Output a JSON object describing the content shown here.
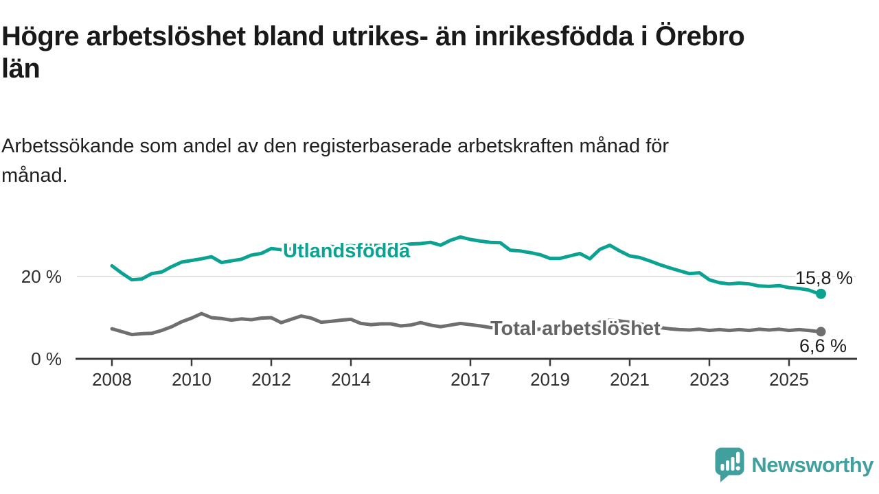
{
  "title": "Högre arbetslöshet bland utrikes- än inrikesfödda i Örebro\nlän",
  "subtitle": "Arbetssökande som andel av den registerbaserade arbetskraften månad för\nmånad.",
  "colors": {
    "utlandsfodda": "#0ba291",
    "total": "#6f6f6f",
    "gridline": "#d9d9d9",
    "axis": "#3a3a3a",
    "value_label": "#1b1b1b",
    "brand_teal": "#3fa09d"
  },
  "chart_data": {
    "type": "line",
    "unit": "%",
    "grid": "single horizontal gridline at 20 %",
    "legend_position": "labels inline on lines",
    "x_axis_range": [
      2007.1,
      2026.7
    ],
    "ylim": [
      0,
      31
    ],
    "y_ticks": [
      {
        "v": 20,
        "label": "20 %"
      },
      {
        "v": 0,
        "label": "0 %"
      }
    ],
    "x_ticks": [
      {
        "t": 2008,
        "label": "2008"
      },
      {
        "t": 2010,
        "label": "2010"
      },
      {
        "t": 2012,
        "label": "2012"
      },
      {
        "t": 2014,
        "label": "2014"
      },
      {
        "t": 2017,
        "label": "2017"
      },
      {
        "t": 2019,
        "label": "2019"
      },
      {
        "t": 2021,
        "label": "2021"
      },
      {
        "t": 2023,
        "label": "2023"
      },
      {
        "t": 2025,
        "label": "2025"
      }
    ],
    "x": [
      2008.0,
      2008.25,
      2008.5,
      2008.75,
      2009.0,
      2009.25,
      2009.5,
      2009.75,
      2010.0,
      2010.25,
      2010.5,
      2010.75,
      2011.0,
      2011.25,
      2011.5,
      2011.75,
      2012.0,
      2012.25,
      2012.5,
      2012.75,
      2013.0,
      2013.25,
      2013.5,
      2013.75,
      2014.0,
      2014.25,
      2014.5,
      2014.75,
      2015.0,
      2015.25,
      2015.5,
      2015.75,
      2016.0,
      2016.25,
      2016.5,
      2016.75,
      2017.0,
      2017.25,
      2017.5,
      2017.75,
      2018.0,
      2018.25,
      2018.5,
      2018.75,
      2019.0,
      2019.25,
      2019.5,
      2019.75,
      2020.0,
      2020.25,
      2020.5,
      2020.75,
      2021.0,
      2021.25,
      2021.5,
      2021.75,
      2022.0,
      2022.25,
      2022.5,
      2022.75,
      2023.0,
      2023.25,
      2023.5,
      2023.75,
      2024.0,
      2024.25,
      2024.5,
      2024.75,
      2025.0,
      2025.25,
      2025.5,
      2025.75
    ],
    "series": [
      {
        "name": "Utlandsfödda",
        "color": "#0ba291",
        "end_label": "15,8 %",
        "end_value": 15.8,
        "values": [
          22.6,
          20.8,
          19.2,
          19.4,
          20.7,
          21.1,
          22.4,
          23.5,
          23.9,
          24.3,
          24.8,
          23.4,
          23.8,
          24.2,
          25.2,
          25.6,
          26.8,
          26.5,
          26.7,
          26.9,
          27.1,
          27.0,
          27.3,
          27.2,
          27.5,
          27.3,
          27.6,
          27.5,
          27.7,
          27.6,
          27.9,
          28.0,
          28.3,
          27.6,
          28.8,
          29.6,
          29.0,
          28.6,
          28.3,
          28.2,
          26.4,
          26.2,
          25.8,
          25.3,
          24.4,
          24.4,
          25.0,
          25.6,
          24.3,
          26.6,
          27.6,
          26.2,
          25.0,
          24.6,
          23.8,
          22.9,
          22.1,
          21.4,
          20.7,
          20.9,
          19.2,
          18.5,
          18.2,
          18.4,
          18.2,
          17.7,
          17.6,
          17.8,
          17.3,
          17.1,
          16.7,
          15.8
        ]
      },
      {
        "name": "Total arbetslöshet",
        "color": "#6f6f6f",
        "end_label": "6,6 %",
        "end_value": 6.6,
        "values": [
          7.3,
          6.6,
          5.9,
          6.1,
          6.2,
          6.9,
          7.8,
          9.0,
          9.9,
          11.0,
          10.0,
          9.8,
          9.4,
          9.7,
          9.5,
          9.9,
          10.0,
          8.8,
          9.6,
          10.4,
          9.9,
          8.9,
          9.1,
          9.4,
          9.6,
          8.6,
          8.3,
          8.5,
          8.5,
          8.0,
          8.2,
          8.8,
          8.2,
          7.8,
          8.2,
          8.6,
          8.3,
          8.0,
          7.6,
          7.4,
          7.5,
          7.3,
          7.1,
          7.2,
          7.3,
          7.1,
          7.4,
          7.3,
          7.6,
          8.9,
          9.4,
          9.2,
          8.9,
          8.5,
          8.0,
          7.6,
          7.3,
          7.1,
          7.0,
          7.2,
          6.9,
          7.1,
          6.9,
          7.1,
          6.9,
          7.2,
          7.0,
          7.2,
          6.9,
          7.1,
          6.9,
          6.6
        ]
      }
    ]
  },
  "branding": {
    "logo_text": "Newsworthy",
    "logo_icon": "bar-chart-speech-bubble"
  }
}
